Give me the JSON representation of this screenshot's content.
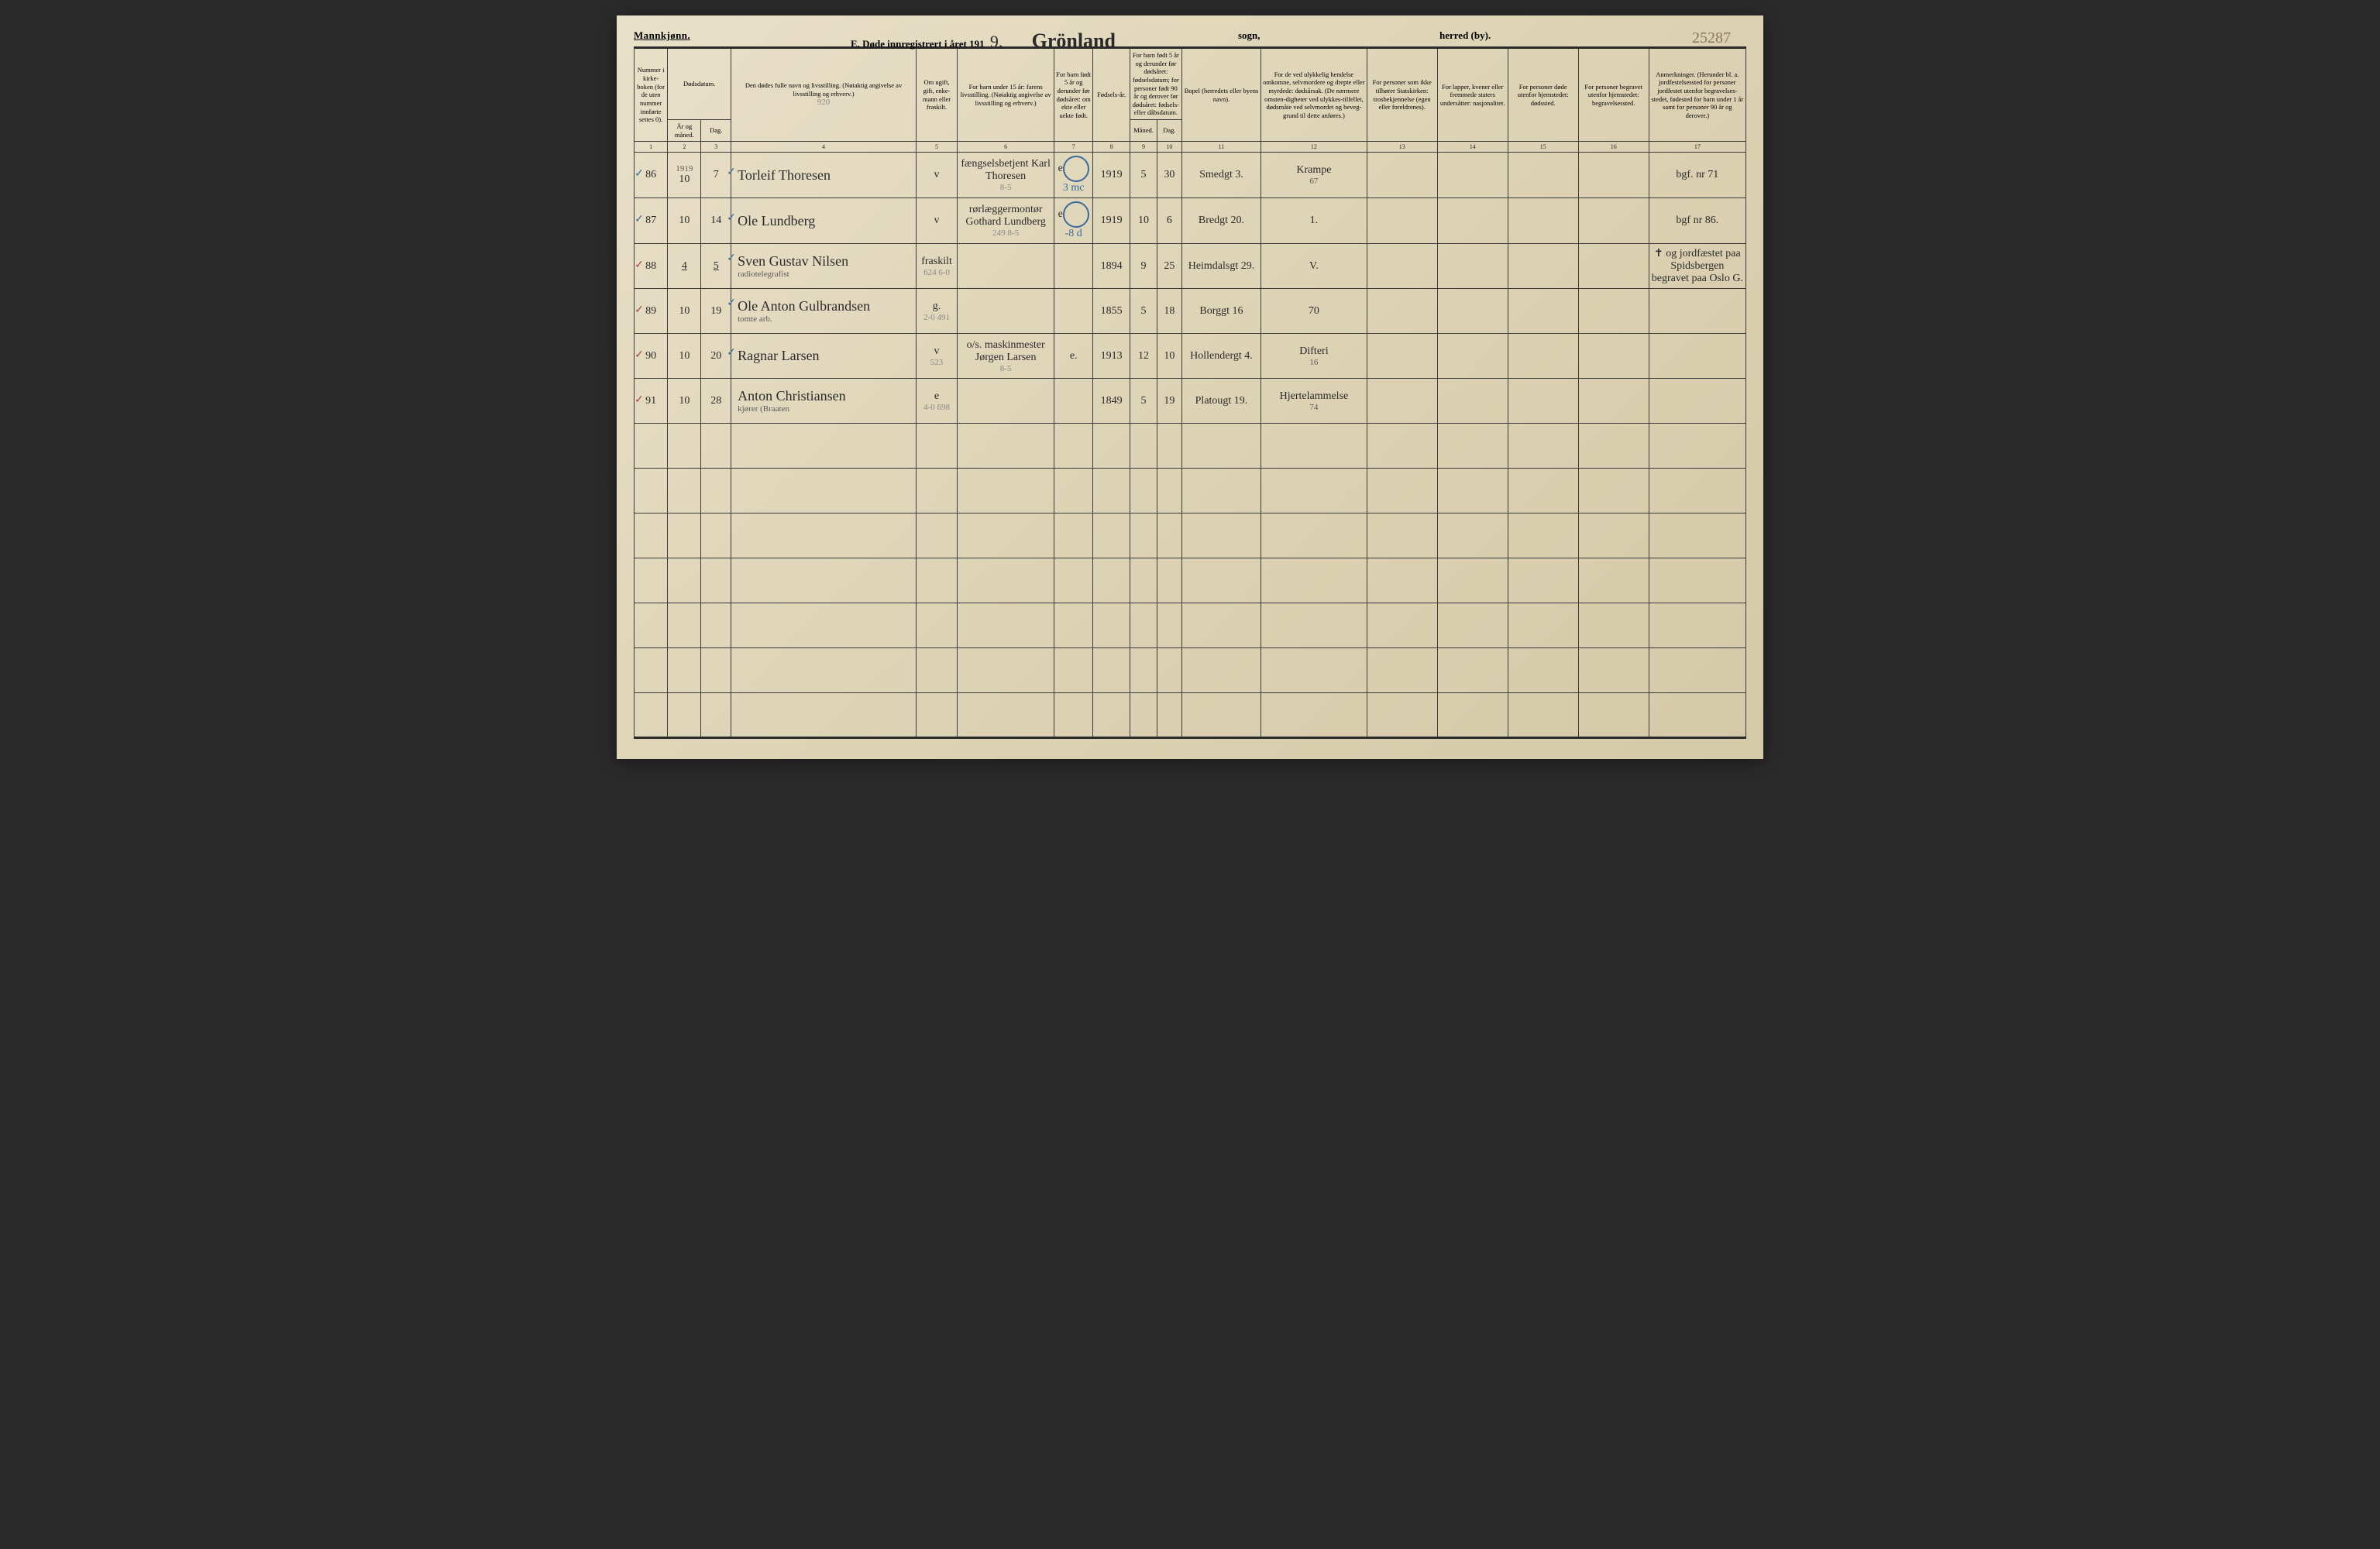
{
  "page": {
    "gender_label": "Mannkjønn.",
    "title_prefix": "E. Døde innregistrert i året 191",
    "year_digit": "9.",
    "parish_name": "Grönland",
    "sogn_label": "sogn,",
    "herred_label": "herred (by).",
    "page_number": "25287"
  },
  "headers": {
    "c1": "Nummer i kirke-boken (for de uten nummer innførte settes 0).",
    "c2": "Dødsdatum.",
    "c2a": "År og måned.",
    "c2b": "Dag.",
    "c4": "Den dødes fulle navn og livsstilling. (Nøiaktig angivelse av livsstilling og erhverv.)",
    "c5": "Om ugift, gift, enke-mann eller fraskilt.",
    "c6": "For barn under 15 år: farens livsstilling. (Nøiaktig angivelse av livsstilling og erhverv.)",
    "c7": "For barn født 5 år og derunder før dødsåret: om ekte eller uekte født.",
    "c8": "Fødsels-år.",
    "c9": "For barn født 5 år og derunder før dødsåret: fødselsdatum; for personer født 90 år og derover før dødsåret: fødsels- eller dåbsdatum.",
    "c9a": "Måned.",
    "c9b": "Dag.",
    "c11": "Bopel (herredets eller byens navn).",
    "c12": "For de ved ulykkelig hendelse omkomne, selvmordere og drepte eller myrdede: dødsårsak. (De nærmere omsten-digheter ved ulykkes-tilfellet, dødsmåte ved selvmordet og beveg-grund til dette anføres.)",
    "c13": "For personer som ikke tilhører Statskirken: trosbekjennelse (egen eller foreldrenes).",
    "c14": "For lapper, kvener eller fremmede staters undersåtter: nasjonalitet.",
    "c15": "For personer døde utenfor hjemstedet: dødssted.",
    "c16": "For personer begravet utenfor hjemstedet: begravelsessted.",
    "c17": "Anmerkninger. (Herunder bl. a. jordfestelsessted for personer jordfestet utenfor begravelses-stedet, fødested for barn under 1 år samt for personer 90 år og derover.)",
    "pencil_920": "920"
  },
  "colnums": [
    "1",
    "2",
    "3",
    "4",
    "5",
    "6",
    "7",
    "8",
    "9",
    "10",
    "11",
    "12",
    "13",
    "14",
    "15",
    "16",
    "17"
  ],
  "rows": [
    {
      "num": "86",
      "year_month_top": "1919",
      "year_month": "10",
      "day": "7",
      "name": "Torleif Thoresen",
      "name_sub": "",
      "status": "v",
      "father": "fængselsbetjent Karl Thoresen",
      "father_pencil": "8-5",
      "child5": "e",
      "byear": "1919",
      "bmonth": "5",
      "bday": "30",
      "addr": "Smedgt 3.",
      "cause": "Krampe",
      "cause_sub": "67",
      "circle_text": "3 mc",
      "note": "bgf. nr 71"
    },
    {
      "num": "87",
      "year_month": "10",
      "day": "14",
      "name": "Ole Lundberg",
      "name_sub": "",
      "status": "v",
      "father": "rørlæggermontør Gothard Lundberg",
      "father_pencil": "249  8-5",
      "child5": "e",
      "byear": "1919",
      "bmonth": "10",
      "bday": "6",
      "addr": "Bredgt 20.",
      "cause": "1.",
      "circle_text": "-8 d",
      "note": "bgf nr 86."
    },
    {
      "num": "88",
      "year_month": "4",
      "day": "5",
      "name": "Sven Gustav Nilsen",
      "name_sub": "radiotelegrafist",
      "status": "fraskilt",
      "status_pencil": "624 6-0",
      "father": "",
      "child5": "",
      "byear": "1894",
      "bmonth": "9",
      "bday": "25",
      "addr": "Heimdalsgt 29.",
      "cause": "V.",
      "note": "✝ og jordfæstet paa Spidsbergen begravet paa Oslo G."
    },
    {
      "num": "89",
      "year_month": "10",
      "day": "19",
      "name": "Ole Anton Gulbrandsen",
      "name_sub": "tomte arb.",
      "status": "g.",
      "status_pencil": "2-0  491",
      "father": "",
      "child5": "",
      "byear": "1855",
      "bmonth": "5",
      "bday": "18",
      "addr": "Borggt 16",
      "cause": "70",
      "note": ""
    },
    {
      "num": "90",
      "year_month": "10",
      "day": "20",
      "name": "Ragnar Larsen",
      "name_sub": "",
      "status": "v",
      "status_pencil": "523",
      "father": "o/s. maskinmester Jørgen Larsen",
      "father_pencil": "8-5",
      "child5": "e.",
      "byear": "1913",
      "bmonth": "12",
      "bday": "10",
      "addr": "Hollendergt 4.",
      "cause": "Difteri",
      "cause_sub": "16",
      "note": ""
    },
    {
      "num": "91",
      "year_month": "10",
      "day": "28",
      "name": "Anton Christiansen",
      "name_sub": "kjører     (Braaten",
      "status": "e",
      "status_pencil": "4-0  698",
      "father": "",
      "child5": "",
      "byear": "1849",
      "bmonth": "5",
      "bday": "19",
      "addr": "Platougt 19.",
      "cause": "Hjertelammelse",
      "cause_sub": "74",
      "note": ""
    }
  ]
}
